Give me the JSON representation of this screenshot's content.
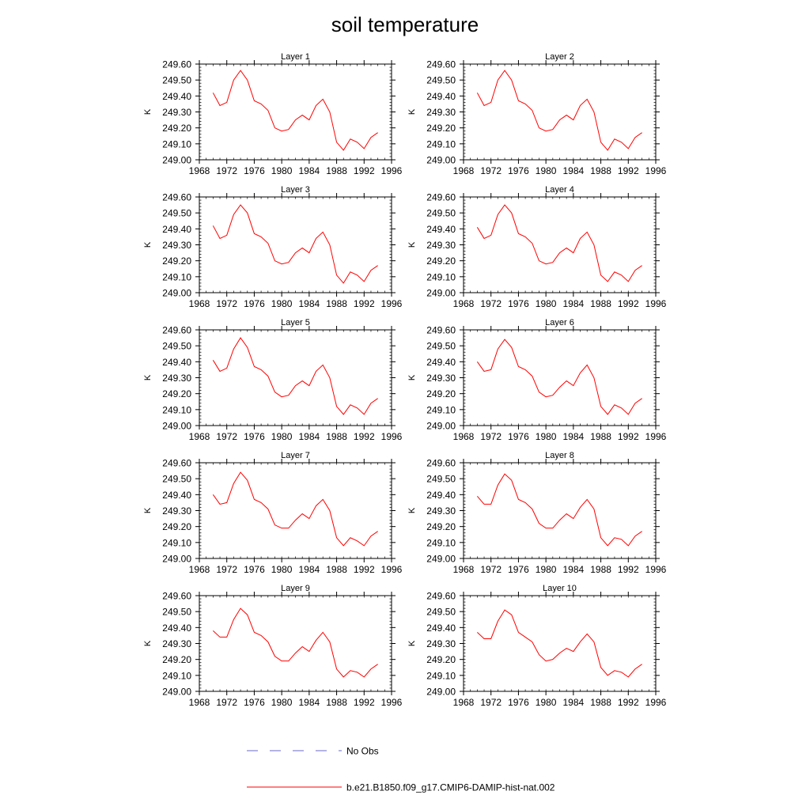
{
  "figure": {
    "title": "soil temperature"
  },
  "legend": {
    "obs_label": "No Obs",
    "obs_color": "#6a6ac8",
    "model_label": "b.e21.B1850.f09_g17.CMIP6-DAMIP-hist-nat.002",
    "model_color": "#ff0000"
  },
  "chart_data": [
    {
      "type": "line",
      "title": "Layer 1",
      "ylabel": "K",
      "xlim": [
        1968,
        1996
      ],
      "ylim": [
        249.0,
        249.6
      ],
      "xticks": [
        "1968",
        "1972",
        "1976",
        "1980",
        "1984",
        "1988",
        "1992",
        "1996"
      ],
      "yticks": [
        "249.00",
        "249.10",
        "249.20",
        "249.30",
        "249.40",
        "249.50",
        "249.60"
      ],
      "x": [
        1970,
        1971,
        1972,
        1973,
        1974,
        1975,
        1976,
        1977,
        1978,
        1979,
        1980,
        1981,
        1982,
        1983,
        1984,
        1985,
        1986,
        1987,
        1988,
        1989,
        1990,
        1991,
        1992,
        1993,
        1994
      ],
      "series": [
        {
          "name": "b.e21.B1850.f09_g17.CMIP6-DAMIP-hist-nat.002",
          "values": [
            249.42,
            249.34,
            249.36,
            249.5,
            249.56,
            249.5,
            249.37,
            249.35,
            249.31,
            249.2,
            249.18,
            249.19,
            249.25,
            249.28,
            249.25,
            249.34,
            249.38,
            249.3,
            249.11,
            249.06,
            249.13,
            249.11,
            249.07,
            249.14,
            249.17
          ]
        }
      ]
    },
    {
      "type": "line",
      "title": "Layer 2",
      "ylabel": "K",
      "xlim": [
        1968,
        1996
      ],
      "ylim": [
        249.0,
        249.6
      ],
      "xticks": [
        "1968",
        "1972",
        "1976",
        "1980",
        "1984",
        "1988",
        "1992",
        "1996"
      ],
      "yticks": [
        "249.00",
        "249.10",
        "249.20",
        "249.30",
        "249.40",
        "249.50",
        "249.60"
      ],
      "x": [
        1970,
        1971,
        1972,
        1973,
        1974,
        1975,
        1976,
        1977,
        1978,
        1979,
        1980,
        1981,
        1982,
        1983,
        1984,
        1985,
        1986,
        1987,
        1988,
        1989,
        1990,
        1991,
        1992,
        1993,
        1994
      ],
      "series": [
        {
          "name": "b.e21.B1850.f09_g17.CMIP6-DAMIP-hist-nat.002",
          "values": [
            249.42,
            249.34,
            249.36,
            249.5,
            249.56,
            249.5,
            249.37,
            249.35,
            249.31,
            249.2,
            249.18,
            249.19,
            249.25,
            249.28,
            249.25,
            249.34,
            249.38,
            249.3,
            249.11,
            249.06,
            249.13,
            249.11,
            249.07,
            249.14,
            249.17
          ]
        }
      ]
    },
    {
      "type": "line",
      "title": "Layer 3",
      "ylabel": "K",
      "xlim": [
        1968,
        1996
      ],
      "ylim": [
        249.0,
        249.6
      ],
      "xticks": [
        "1968",
        "1972",
        "1976",
        "1980",
        "1984",
        "1988",
        "1992",
        "1996"
      ],
      "yticks": [
        "249.00",
        "249.10",
        "249.20",
        "249.30",
        "249.40",
        "249.50",
        "249.60"
      ],
      "x": [
        1970,
        1971,
        1972,
        1973,
        1974,
        1975,
        1976,
        1977,
        1978,
        1979,
        1980,
        1981,
        1982,
        1983,
        1984,
        1985,
        1986,
        1987,
        1988,
        1989,
        1990,
        1991,
        1992,
        1993,
        1994
      ],
      "series": [
        {
          "name": "b.e21.B1850.f09_g17.CMIP6-DAMIP-hist-nat.002",
          "values": [
            249.42,
            249.34,
            249.36,
            249.49,
            249.55,
            249.5,
            249.37,
            249.35,
            249.31,
            249.2,
            249.18,
            249.19,
            249.25,
            249.28,
            249.25,
            249.34,
            249.38,
            249.3,
            249.11,
            249.06,
            249.13,
            249.11,
            249.07,
            249.14,
            249.17
          ]
        }
      ]
    },
    {
      "type": "line",
      "title": "Layer 4",
      "ylabel": "K",
      "xlim": [
        1968,
        1996
      ],
      "ylim": [
        249.0,
        249.6
      ],
      "xticks": [
        "1968",
        "1972",
        "1976",
        "1980",
        "1984",
        "1988",
        "1992",
        "1996"
      ],
      "yticks": [
        "249.00",
        "249.10",
        "249.20",
        "249.30",
        "249.40",
        "249.50",
        "249.60"
      ],
      "x": [
        1970,
        1971,
        1972,
        1973,
        1974,
        1975,
        1976,
        1977,
        1978,
        1979,
        1980,
        1981,
        1982,
        1983,
        1984,
        1985,
        1986,
        1987,
        1988,
        1989,
        1990,
        1991,
        1992,
        1993,
        1994
      ],
      "series": [
        {
          "name": "b.e21.B1850.f09_g17.CMIP6-DAMIP-hist-nat.002",
          "values": [
            249.41,
            249.34,
            249.36,
            249.49,
            249.55,
            249.5,
            249.37,
            249.35,
            249.31,
            249.2,
            249.18,
            249.19,
            249.25,
            249.28,
            249.25,
            249.34,
            249.38,
            249.3,
            249.11,
            249.07,
            249.13,
            249.11,
            249.07,
            249.14,
            249.17
          ]
        }
      ]
    },
    {
      "type": "line",
      "title": "Layer 5",
      "ylabel": "K",
      "xlim": [
        1968,
        1996
      ],
      "ylim": [
        249.0,
        249.6
      ],
      "xticks": [
        "1968",
        "1972",
        "1976",
        "1980",
        "1984",
        "1988",
        "1992",
        "1996"
      ],
      "yticks": [
        "249.00",
        "249.10",
        "249.20",
        "249.30",
        "249.40",
        "249.50",
        "249.60"
      ],
      "x": [
        1970,
        1971,
        1972,
        1973,
        1974,
        1975,
        1976,
        1977,
        1978,
        1979,
        1980,
        1981,
        1982,
        1983,
        1984,
        1985,
        1986,
        1987,
        1988,
        1989,
        1990,
        1991,
        1992,
        1993,
        1994
      ],
      "series": [
        {
          "name": "b.e21.B1850.f09_g17.CMIP6-DAMIP-hist-nat.002",
          "values": [
            249.41,
            249.34,
            249.36,
            249.48,
            249.55,
            249.49,
            249.37,
            249.35,
            249.31,
            249.21,
            249.18,
            249.19,
            249.25,
            249.28,
            249.25,
            249.34,
            249.38,
            249.3,
            249.12,
            249.07,
            249.13,
            249.11,
            249.07,
            249.14,
            249.17
          ]
        }
      ]
    },
    {
      "type": "line",
      "title": "Layer 6",
      "ylabel": "K",
      "xlim": [
        1968,
        1996
      ],
      "ylim": [
        249.0,
        249.6
      ],
      "xticks": [
        "1968",
        "1972",
        "1976",
        "1980",
        "1984",
        "1988",
        "1992",
        "1996"
      ],
      "yticks": [
        "249.00",
        "249.10",
        "249.20",
        "249.30",
        "249.40",
        "249.50",
        "249.60"
      ],
      "x": [
        1970,
        1971,
        1972,
        1973,
        1974,
        1975,
        1976,
        1977,
        1978,
        1979,
        1980,
        1981,
        1982,
        1983,
        1984,
        1985,
        1986,
        1987,
        1988,
        1989,
        1990,
        1991,
        1992,
        1993,
        1994
      ],
      "series": [
        {
          "name": "b.e21.B1850.f09_g17.CMIP6-DAMIP-hist-nat.002",
          "values": [
            249.4,
            249.34,
            249.35,
            249.48,
            249.54,
            249.49,
            249.37,
            249.35,
            249.31,
            249.21,
            249.18,
            249.19,
            249.24,
            249.28,
            249.25,
            249.33,
            249.38,
            249.3,
            249.12,
            249.07,
            249.13,
            249.11,
            249.07,
            249.14,
            249.17
          ]
        }
      ]
    },
    {
      "type": "line",
      "title": "Layer 7",
      "ylabel": "K",
      "xlim": [
        1968,
        1996
      ],
      "ylim": [
        249.0,
        249.6
      ],
      "xticks": [
        "1968",
        "1972",
        "1976",
        "1980",
        "1984",
        "1988",
        "1992",
        "1996"
      ],
      "yticks": [
        "249.00",
        "249.10",
        "249.20",
        "249.30",
        "249.40",
        "249.50",
        "249.60"
      ],
      "x": [
        1970,
        1971,
        1972,
        1973,
        1974,
        1975,
        1976,
        1977,
        1978,
        1979,
        1980,
        1981,
        1982,
        1983,
        1984,
        1985,
        1986,
        1987,
        1988,
        1989,
        1990,
        1991,
        1992,
        1993,
        1994
      ],
      "series": [
        {
          "name": "b.e21.B1850.f09_g17.CMIP6-DAMIP-hist-nat.002",
          "values": [
            249.4,
            249.34,
            249.35,
            249.47,
            249.54,
            249.49,
            249.37,
            249.35,
            249.31,
            249.21,
            249.19,
            249.19,
            249.24,
            249.28,
            249.25,
            249.33,
            249.37,
            249.3,
            249.13,
            249.08,
            249.13,
            249.11,
            249.08,
            249.14,
            249.17
          ]
        }
      ]
    },
    {
      "type": "line",
      "title": "Layer 8",
      "ylabel": "K",
      "xlim": [
        1968,
        1996
      ],
      "ylim": [
        249.0,
        249.6
      ],
      "xticks": [
        "1968",
        "1972",
        "1976",
        "1980",
        "1984",
        "1988",
        "1992",
        "1996"
      ],
      "yticks": [
        "249.00",
        "249.10",
        "249.20",
        "249.30",
        "249.40",
        "249.50",
        "249.60"
      ],
      "x": [
        1970,
        1971,
        1972,
        1973,
        1974,
        1975,
        1976,
        1977,
        1978,
        1979,
        1980,
        1981,
        1982,
        1983,
        1984,
        1985,
        1986,
        1987,
        1988,
        1989,
        1990,
        1991,
        1992,
        1993,
        1994
      ],
      "series": [
        {
          "name": "b.e21.B1850.f09_g17.CMIP6-DAMIP-hist-nat.002",
          "values": [
            249.39,
            249.34,
            249.34,
            249.46,
            249.53,
            249.49,
            249.37,
            249.35,
            249.31,
            249.22,
            249.19,
            249.19,
            249.24,
            249.28,
            249.25,
            249.32,
            249.37,
            249.31,
            249.13,
            249.08,
            249.13,
            249.12,
            249.08,
            249.14,
            249.17
          ]
        }
      ]
    },
    {
      "type": "line",
      "title": "Layer 9",
      "ylabel": "K",
      "xlim": [
        1968,
        1996
      ],
      "ylim": [
        249.0,
        249.6
      ],
      "xticks": [
        "1968",
        "1972",
        "1976",
        "1980",
        "1984",
        "1988",
        "1992",
        "1996"
      ],
      "yticks": [
        "249.00",
        "249.10",
        "249.20",
        "249.30",
        "249.40",
        "249.50",
        "249.60"
      ],
      "x": [
        1970,
        1971,
        1972,
        1973,
        1974,
        1975,
        1976,
        1977,
        1978,
        1979,
        1980,
        1981,
        1982,
        1983,
        1984,
        1985,
        1986,
        1987,
        1988,
        1989,
        1990,
        1991,
        1992,
        1993,
        1994
      ],
      "series": [
        {
          "name": "b.e21.B1850.f09_g17.CMIP6-DAMIP-hist-nat.002",
          "values": [
            249.38,
            249.34,
            249.34,
            249.45,
            249.52,
            249.48,
            249.37,
            249.35,
            249.31,
            249.22,
            249.19,
            249.19,
            249.24,
            249.28,
            249.25,
            249.32,
            249.37,
            249.31,
            249.14,
            249.09,
            249.13,
            249.12,
            249.09,
            249.14,
            249.17
          ]
        }
      ]
    },
    {
      "type": "line",
      "title": "Layer 10",
      "ylabel": "K",
      "xlim": [
        1968,
        1996
      ],
      "ylim": [
        249.0,
        249.6
      ],
      "xticks": [
        "1968",
        "1972",
        "1976",
        "1980",
        "1984",
        "1988",
        "1992",
        "1996"
      ],
      "yticks": [
        "249.00",
        "249.10",
        "249.20",
        "249.30",
        "249.40",
        "249.50",
        "249.60"
      ],
      "x": [
        1970,
        1971,
        1972,
        1973,
        1974,
        1975,
        1976,
        1977,
        1978,
        1979,
        1980,
        1981,
        1982,
        1983,
        1984,
        1985,
        1986,
        1987,
        1988,
        1989,
        1990,
        1991,
        1992,
        1993,
        1994
      ],
      "series": [
        {
          "name": "b.e21.B1850.f09_g17.CMIP6-DAMIP-hist-nat.002",
          "values": [
            249.37,
            249.33,
            249.33,
            249.44,
            249.51,
            249.48,
            249.37,
            249.34,
            249.31,
            249.23,
            249.19,
            249.2,
            249.24,
            249.27,
            249.25,
            249.31,
            249.36,
            249.31,
            249.15,
            249.1,
            249.13,
            249.12,
            249.09,
            249.14,
            249.17
          ]
        }
      ]
    }
  ]
}
